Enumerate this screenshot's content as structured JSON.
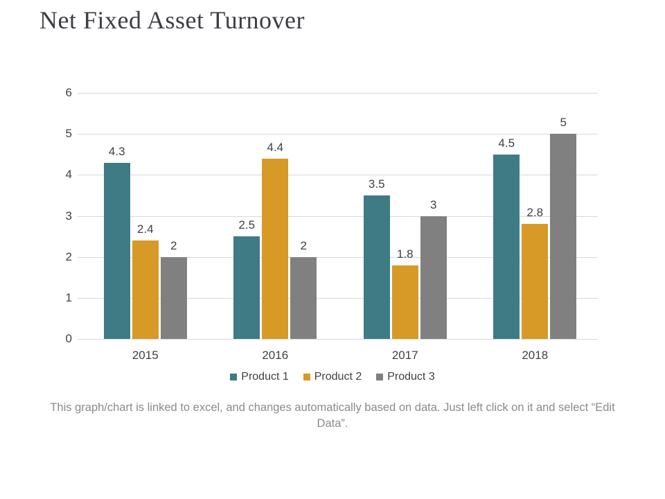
{
  "page": {
    "title": "Net Fixed Asset Turnover"
  },
  "chart_data": {
    "type": "bar",
    "title": "",
    "xlabel": "",
    "ylabel": "",
    "categories": [
      "2015",
      "2016",
      "2017",
      "2018"
    ],
    "series": [
      {
        "name": "Product 1",
        "color": "#3e7b84",
        "values": [
          4.3,
          2.5,
          3.5,
          4.5
        ],
        "labels": [
          "4.3",
          "2.5",
          "3.5",
          "4.5"
        ]
      },
      {
        "name": "Product 2",
        "color": "#d79a26",
        "values": [
          2.4,
          4.4,
          1.8,
          2.8
        ],
        "labels": [
          "2.4",
          "4.4",
          "1.8",
          "2.8"
        ]
      },
      {
        "name": "Product 3",
        "color": "#808080",
        "values": [
          2,
          2,
          3,
          5
        ],
        "labels": [
          "2",
          "2",
          "3",
          "5"
        ]
      }
    ],
    "ylim": [
      0,
      6
    ],
    "yticks": [
      0,
      1,
      2,
      3,
      4,
      5,
      6
    ],
    "grid": true,
    "gridline_color": "#d9d9d9",
    "label_color": "#404040",
    "legend_position": "bottom"
  },
  "footer": {
    "note": "This graph/chart is linked to excel, and changes automatically based on data. Just left click on it and select “Edit Data”."
  }
}
